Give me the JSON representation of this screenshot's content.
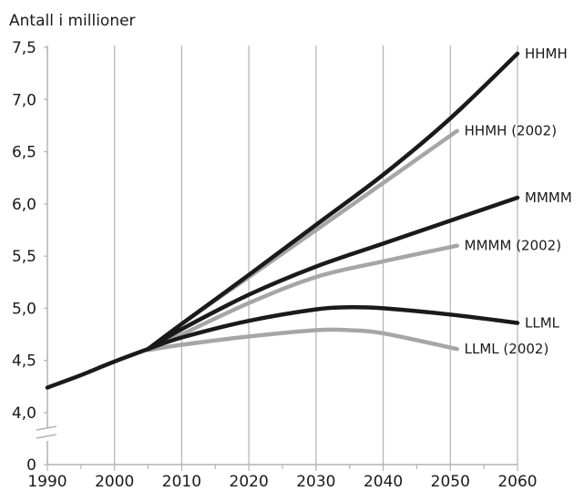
{
  "chart_data": {
    "type": "line",
    "ylabel": "Antall i millioner",
    "xlim": [
      1990,
      2060
    ],
    "ylim": [
      4.0,
      7.5
    ],
    "x_ticks": [
      1990,
      2000,
      2010,
      2020,
      2030,
      2040,
      2050,
      2060
    ],
    "x_tick_labels": [
      "1990",
      "2000",
      "2010",
      "2020",
      "2030",
      "2040",
      "2050",
      "2060"
    ],
    "y_ticks": [
      4.0,
      4.5,
      5.0,
      5.5,
      6.0,
      6.5,
      7.0,
      7.5
    ],
    "y_tick_labels": [
      "4,0",
      "4,5",
      "5,0",
      "5,5",
      "6,0",
      "6,5",
      "7,0",
      "7,5"
    ],
    "y_zero_label": "0",
    "axis_break": true,
    "grid": "vertical",
    "colors": {
      "current": "#1a1a1a",
      "projection_2002": "#a6a6a6",
      "grid": "#b3b3b3"
    },
    "series": [
      {
        "name": "",
        "color": "#1a1a1a",
        "x": [
          1990,
          1995,
          2000,
          2005
        ],
        "y": [
          4.24,
          4.36,
          4.49,
          4.61
        ]
      },
      {
        "name": "HHMH",
        "color": "#1a1a1a",
        "x": [
          2005,
          2010,
          2020,
          2030,
          2040,
          2050,
          2060
        ],
        "y": [
          4.61,
          4.85,
          5.32,
          5.8,
          6.28,
          6.82,
          7.44
        ]
      },
      {
        "name": "HHMH (2002)",
        "color": "#a6a6a6",
        "x": [
          2005,
          2010,
          2020,
          2030,
          2040,
          2051
        ],
        "y": [
          4.6,
          4.85,
          5.3,
          5.75,
          6.2,
          6.7
        ]
      },
      {
        "name": "MMMM",
        "color": "#1a1a1a",
        "x": [
          2005,
          2010,
          2020,
          2030,
          2040,
          2050,
          2060
        ],
        "y": [
          4.61,
          4.8,
          5.13,
          5.4,
          5.62,
          5.84,
          6.06
        ]
      },
      {
        "name": "MMMM (2002)",
        "color": "#a6a6a6",
        "x": [
          2005,
          2010,
          2020,
          2030,
          2040,
          2051
        ],
        "y": [
          4.6,
          4.75,
          5.05,
          5.3,
          5.45,
          5.6
        ]
      },
      {
        "name": "LLML",
        "color": "#1a1a1a",
        "x": [
          2005,
          2010,
          2020,
          2030,
          2035,
          2040,
          2050,
          2060
        ],
        "y": [
          4.61,
          4.72,
          4.88,
          4.99,
          5.01,
          5.0,
          4.94,
          4.86
        ]
      },
      {
        "name": "LLML (2002)",
        "color": "#a6a6a6",
        "x": [
          2005,
          2010,
          2020,
          2030,
          2035,
          2040,
          2051
        ],
        "y": [
          4.6,
          4.65,
          4.73,
          4.79,
          4.79,
          4.76,
          4.61
        ]
      }
    ]
  }
}
